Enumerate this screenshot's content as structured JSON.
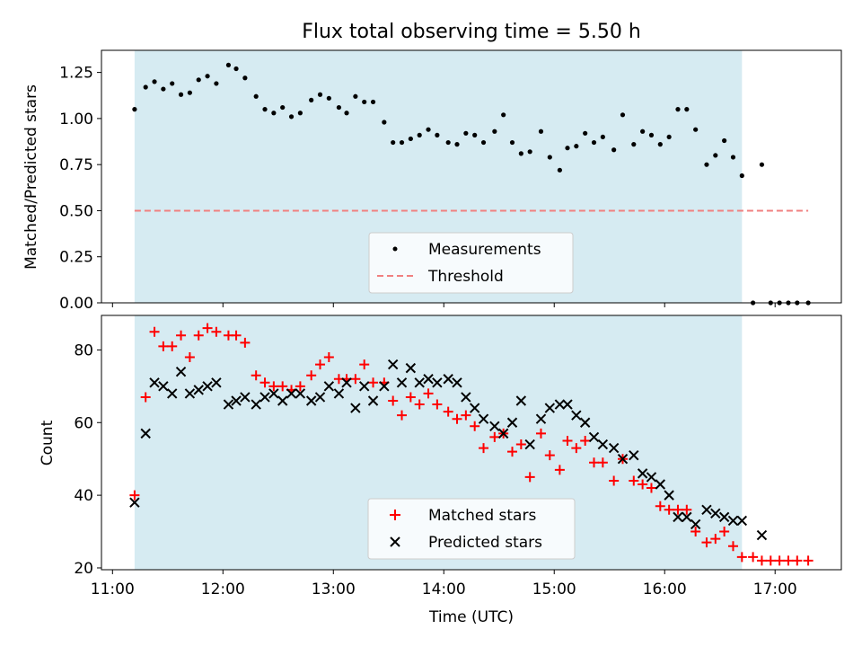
{
  "chart_data": {
    "title": "Flux total observing time = 5.50 h",
    "xlabel": "Time (UTC)",
    "x_ticks": [
      "11:00",
      "12:00",
      "13:00",
      "14:00",
      "15:00",
      "16:00",
      "17:00"
    ],
    "x_tick_hours": [
      11,
      12,
      13,
      14,
      15,
      16,
      17
    ],
    "xlim": [
      10.9,
      17.6
    ],
    "shaded_span": [
      11.2,
      16.7
    ],
    "colors": {
      "shade": "#add8e6",
      "threshold": "#f08080",
      "matched": "#ff0000",
      "predicted": "#000000",
      "measurement": "#000000"
    },
    "top": {
      "type": "scatter",
      "ylabel": "Matched/Predicted stars",
      "ylim": [
        0,
        1.37
      ],
      "y_ticks": [
        "0.00",
        "0.25",
        "0.50",
        "0.75",
        "1.00",
        "1.25"
      ],
      "y_tick_values": [
        0,
        0.25,
        0.5,
        0.75,
        1.0,
        1.25
      ],
      "threshold": 0.5,
      "threshold_x": [
        11.2,
        17.3
      ],
      "legend": [
        "Measurements",
        "Threshold"
      ],
      "x": [
        11.2,
        11.3,
        11.38,
        11.46,
        11.54,
        11.62,
        11.7,
        11.78,
        11.86,
        11.94,
        12.05,
        12.12,
        12.2,
        12.3,
        12.38,
        12.46,
        12.54,
        12.62,
        12.7,
        12.8,
        12.88,
        12.96,
        13.05,
        13.12,
        13.2,
        13.28,
        13.36,
        13.46,
        13.54,
        13.62,
        13.7,
        13.78,
        13.86,
        13.94,
        14.04,
        14.12,
        14.2,
        14.28,
        14.36,
        14.46,
        14.54,
        14.62,
        14.7,
        14.78,
        14.88,
        14.96,
        15.05,
        15.12,
        15.2,
        15.28,
        15.36,
        15.44,
        15.54,
        15.62,
        15.72,
        15.8,
        15.88,
        15.96,
        16.04,
        16.12,
        16.2,
        16.28,
        16.38,
        16.46,
        16.54,
        16.62,
        16.7,
        16.8,
        16.88,
        16.96,
        17.04,
        17.12,
        17.2,
        17.3
      ],
      "y": [
        1.05,
        1.17,
        1.2,
        1.16,
        1.19,
        1.13,
        1.14,
        1.21,
        1.23,
        1.19,
        1.29,
        1.27,
        1.22,
        1.12,
        1.05,
        1.03,
        1.06,
        1.01,
        1.03,
        1.1,
        1.13,
        1.11,
        1.06,
        1.03,
        1.12,
        1.09,
        1.09,
        0.98,
        0.87,
        0.87,
        0.89,
        0.91,
        0.94,
        0.91,
        0.87,
        0.86,
        0.92,
        0.91,
        0.87,
        0.93,
        1.02,
        0.87,
        0.81,
        0.82,
        0.93,
        0.79,
        0.72,
        0.84,
        0.85,
        0.92,
        0.87,
        0.9,
        0.83,
        1.02,
        0.86,
        0.93,
        0.91,
        0.86,
        0.9,
        1.05,
        1.05,
        0.94,
        0.75,
        0.8,
        0.88,
        0.79,
        0.69,
        0.0,
        0.75,
        0.0,
        0.0,
        0.0,
        0.0,
        0.0
      ]
    },
    "bottom": {
      "type": "scatter",
      "ylabel": "Count",
      "ylim": [
        19.5,
        89.5
      ],
      "y_ticks": [
        "20",
        "40",
        "60",
        "80"
      ],
      "y_tick_values": [
        20,
        40,
        60,
        80
      ],
      "legend": [
        "Matched stars",
        "Predicted stars"
      ],
      "series": [
        {
          "name": "Matched stars",
          "x": [
            11.2,
            11.3,
            11.38,
            11.46,
            11.54,
            11.62,
            11.7,
            11.78,
            11.86,
            11.94,
            12.05,
            12.12,
            12.2,
            12.3,
            12.38,
            12.46,
            12.54,
            12.62,
            12.7,
            12.8,
            12.88,
            12.96,
            13.05,
            13.12,
            13.2,
            13.28,
            13.36,
            13.46,
            13.54,
            13.62,
            13.7,
            13.78,
            13.86,
            13.94,
            14.04,
            14.12,
            14.2,
            14.28,
            14.36,
            14.46,
            14.54,
            14.62,
            14.7,
            14.78,
            14.88,
            14.96,
            15.05,
            15.12,
            15.2,
            15.28,
            15.36,
            15.44,
            15.54,
            15.62,
            15.72,
            15.8,
            15.88,
            15.96,
            16.04,
            16.12,
            16.2,
            16.28,
            16.38,
            16.46,
            16.54,
            16.62,
            16.7,
            16.8,
            16.88,
            16.96,
            17.04,
            17.12,
            17.2,
            17.3
          ],
          "y": [
            40,
            67,
            85,
            81,
            81,
            84,
            78,
            84,
            86,
            85,
            84,
            84,
            82,
            73,
            71,
            70,
            70,
            69,
            70,
            73,
            76,
            78,
            72,
            72,
            72,
            76,
            71,
            71,
            66,
            62,
            67,
            65,
            68,
            65,
            63,
            61,
            62,
            59,
            53,
            56,
            57,
            52,
            54,
            45,
            57,
            51,
            47,
            55,
            53,
            55,
            49,
            49,
            44,
            50,
            44,
            43,
            42,
            37,
            36,
            36,
            36,
            30,
            27,
            28,
            30,
            26,
            23,
            23,
            22,
            22,
            22,
            22,
            22,
            22
          ]
        },
        {
          "name": "Predicted stars",
          "x": [
            11.2,
            11.3,
            11.38,
            11.46,
            11.54,
            11.62,
            11.7,
            11.78,
            11.86,
            11.94,
            12.05,
            12.12,
            12.2,
            12.3,
            12.38,
            12.46,
            12.54,
            12.62,
            12.7,
            12.8,
            12.88,
            12.96,
            13.05,
            13.12,
            13.2,
            13.28,
            13.36,
            13.46,
            13.54,
            13.62,
            13.7,
            13.78,
            13.86,
            13.94,
            14.04,
            14.12,
            14.2,
            14.28,
            14.36,
            14.46,
            14.54,
            14.62,
            14.7,
            14.78,
            14.88,
            14.96,
            15.05,
            15.12,
            15.2,
            15.28,
            15.36,
            15.44,
            15.54,
            15.62,
            15.72,
            15.8,
            15.88,
            15.96,
            16.04,
            16.12,
            16.2,
            16.28,
            16.38,
            16.46,
            16.54,
            16.62,
            16.7,
            16.88
          ],
          "y": [
            38,
            57,
            71,
            70,
            68,
            74,
            68,
            69,
            70,
            71,
            65,
            66,
            67,
            65,
            67,
            68,
            66,
            68,
            68,
            66,
            67,
            70,
            68,
            71,
            64,
            70,
            66,
            70,
            76,
            71,
            75,
            71,
            72,
            71,
            72,
            71,
            67,
            64,
            61,
            59,
            57,
            60,
            66,
            54,
            61,
            64,
            65,
            65,
            62,
            60,
            56,
            54,
            53,
            50,
            51,
            46,
            45,
            43,
            40,
            34,
            34,
            32,
            36,
            35,
            34,
            33,
            33,
            29
          ]
        }
      ]
    }
  }
}
